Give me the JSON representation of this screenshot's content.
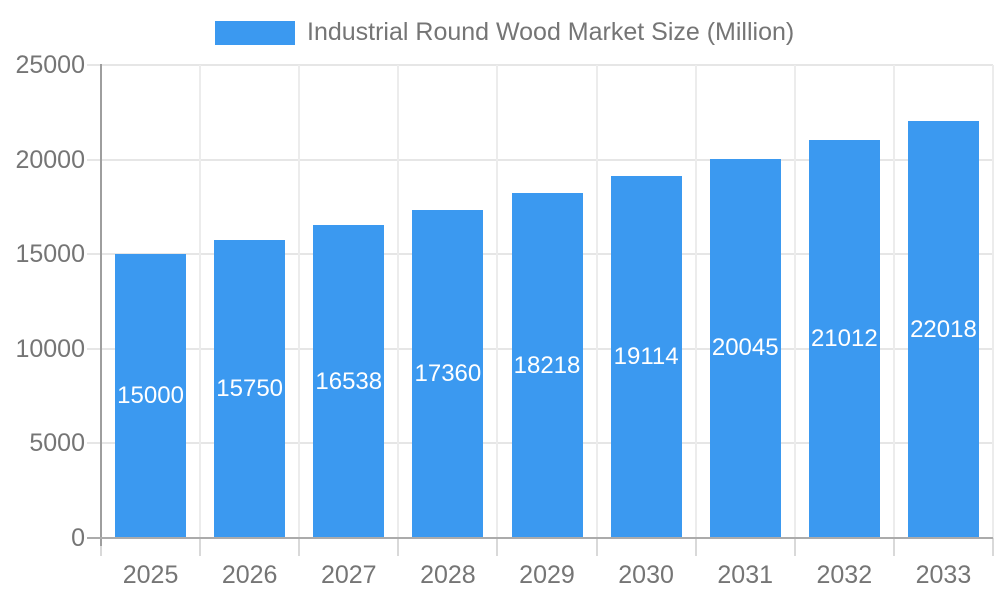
{
  "legend": {
    "label": "Industrial Round Wood Market Size (Million)"
  },
  "chart_data": {
    "type": "bar",
    "title": "Industrial Round Wood Market Size (Million)",
    "series_name": "Industrial Round Wood Market Size (Million)",
    "categories": [
      "2025",
      "2026",
      "2027",
      "2028",
      "2029",
      "2030",
      "2031",
      "2032",
      "2033"
    ],
    "values": [
      15000,
      15750,
      16538,
      17360,
      18218,
      19114,
      20045,
      21012,
      22018
    ],
    "bar_labels": [
      "15000",
      "15750",
      "16538",
      "17360",
      "18218",
      "19114",
      "20045",
      "21012",
      "22018"
    ],
    "ylim": [
      0,
      25000
    ],
    "yticks": [
      0,
      5000,
      10000,
      15000,
      20000,
      25000
    ],
    "ytick_labels": [
      "0",
      "5000",
      "10000",
      "15000",
      "20000",
      "25000"
    ],
    "grid": true,
    "legend_position": "top",
    "xlabel": "",
    "ylabel": "",
    "style": {
      "bar_color": "#3B99F0",
      "bar_label_color": "#ffffff",
      "axis_text_color": "#757575",
      "gridline_color": "#e6e6e6",
      "vertical_gridline_color": "#ececec",
      "y_axis_line_color": "#9e9e9e",
      "baseline_color": "#ababab",
      "below_axis_tick_color": "#d9d9d9",
      "background_color": "#ffffff"
    }
  }
}
